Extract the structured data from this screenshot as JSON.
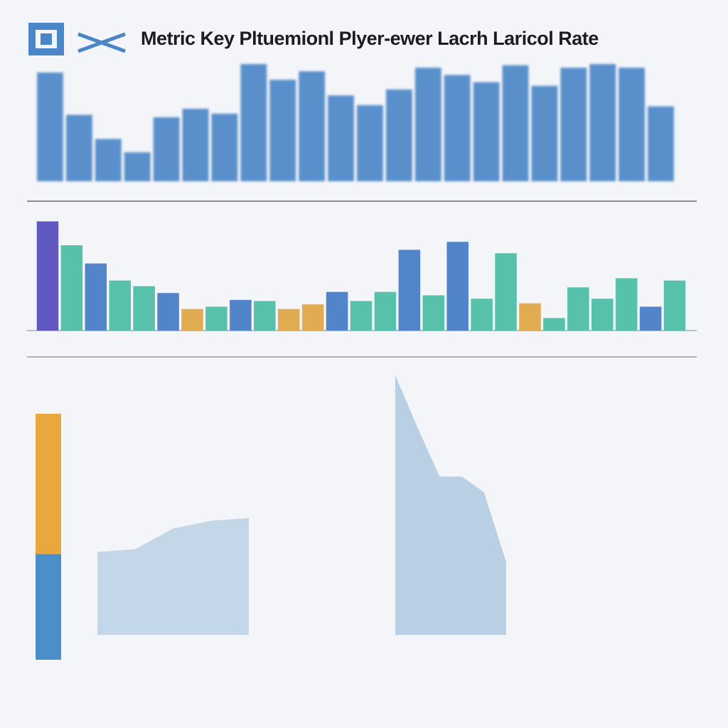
{
  "header": {
    "title": "Metric Key Pltuemionl Plyer-ewer Lacrh Laricol Rate"
  },
  "panels": [
    {
      "type": "bar",
      "color": "#4a86c8",
      "values": [
        90,
        55,
        35,
        24,
        53,
        60,
        56,
        97,
        84,
        91,
        71,
        63,
        76,
        94,
        88,
        82,
        96,
        79,
        94,
        97,
        94,
        62
      ]
    },
    {
      "type": "bar",
      "values": [
        96,
        75,
        59,
        44,
        39,
        33,
        19,
        21,
        27,
        26,
        19,
        23,
        34,
        26,
        34,
        71,
        31,
        78,
        28,
        68,
        24,
        11,
        38,
        28,
        46,
        21,
        44
      ],
      "colors": [
        "#5a4fbf",
        "#4fbfa8",
        "#4a7fc8",
        "#4fbfa8",
        "#4fbfa8",
        "#4a7fc8",
        "#e0a84a",
        "#4fbfa8",
        "#4a7fc8",
        "#4fbfa8",
        "#e0a84a",
        "#e0a84a",
        "#4a7fc8",
        "#4fbfa8",
        "#4fbfa8",
        "#4a7fc8",
        "#4fbfa8",
        "#4a7fc8",
        "#4fbfa8",
        "#4fbfa8",
        "#e0a84a",
        "#4fbfa8",
        "#4fbfa8",
        "#4fbfa8",
        "#4fbfa8",
        "#4a7fc8",
        "#4fbfa8"
      ]
    },
    {
      "type": "stacked",
      "values": [
        43,
        57
      ],
      "colors": [
        "#4a8fc8",
        "#e8a83e"
      ]
    },
    {
      "type": "area",
      "color": "#b8cfe3",
      "values": [
        32,
        33,
        41,
        44,
        45
      ]
    },
    {
      "type": "area",
      "color": "#a9c6de",
      "values": [
        100,
        80,
        61,
        61,
        55,
        28
      ]
    }
  ]
}
